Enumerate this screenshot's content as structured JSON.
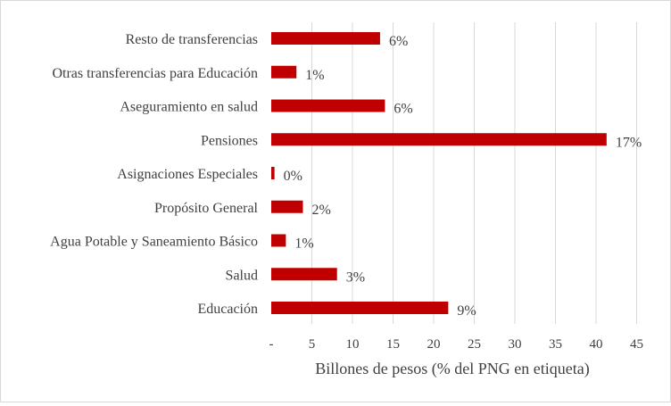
{
  "chart_data": {
    "type": "bar",
    "orientation": "horizontal",
    "categories": [
      "Resto de transferencias",
      "Otras transferencias para Educación",
      "Aseguramiento en salud",
      "Pensiones",
      "Asignaciones Especiales",
      "Propósito General",
      "Agua Potable y Saneamiento Básico",
      "Salud",
      "Educación"
    ],
    "values": [
      13.4,
      3.1,
      14.0,
      41.3,
      0.4,
      3.9,
      1.8,
      8.1,
      21.8
    ],
    "data_labels": [
      "6%",
      "1%",
      "6%",
      "17%",
      "0%",
      "2%",
      "1%",
      "3%",
      "9%"
    ],
    "xlabel": "Billones de pesos (% del PNG en etiqueta)",
    "ylabel": "",
    "xlim": [
      0,
      45
    ],
    "xticks": [
      0,
      5,
      10,
      15,
      20,
      25,
      30,
      35,
      40,
      45
    ],
    "xtick_labels": [
      "-",
      "5",
      "10",
      "15",
      "20",
      "25",
      "30",
      "35",
      "40",
      "45"
    ],
    "grid": "vertical",
    "legend": "none",
    "bar_color": "#c00000",
    "grid_color": "#d9d9d9"
  }
}
